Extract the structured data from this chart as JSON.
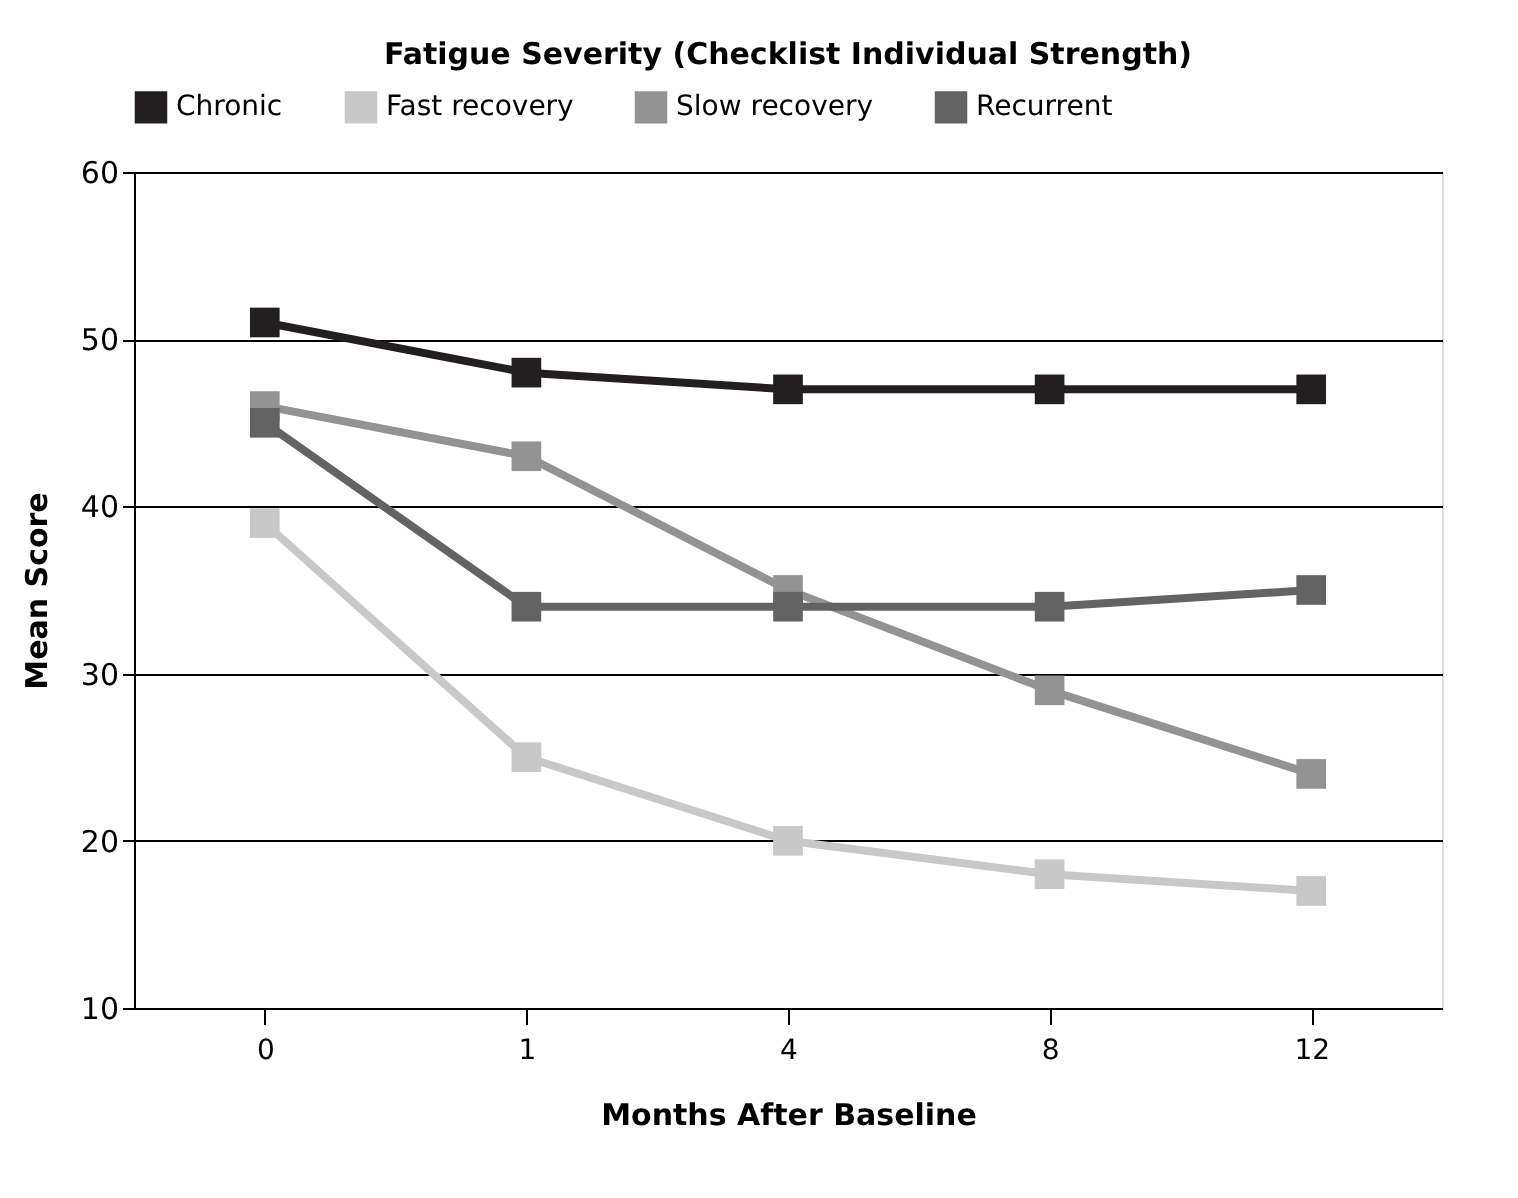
{
  "chart_data": {
    "type": "line",
    "title": "Fatigue Severity (Checklist Individual Strength)",
    "xlabel": "Months After Baseline",
    "ylabel": "Mean Score",
    "categories": [
      "0",
      "1",
      "4",
      "8",
      "12"
    ],
    "series": [
      {
        "name": "Chronic",
        "color": "#231f20",
        "values": [
          51,
          48,
          47,
          47,
          47
        ]
      },
      {
        "name": "Fast recovery",
        "color": "#c8c8c8",
        "values": [
          39,
          25,
          20,
          18,
          17
        ]
      },
      {
        "name": "Slow recovery",
        "color": "#939393",
        "values": [
          46,
          43,
          35,
          29,
          24
        ]
      },
      {
        "name": "Recurrent",
        "color": "#636363",
        "values": [
          45,
          34,
          34,
          34,
          35
        ]
      }
    ],
    "ylim": [
      10,
      60
    ],
    "yticks": [
      10,
      20,
      30,
      40,
      50,
      60
    ],
    "grid": "y",
    "legend": "top",
    "marker": "square",
    "line_style": "solid"
  }
}
